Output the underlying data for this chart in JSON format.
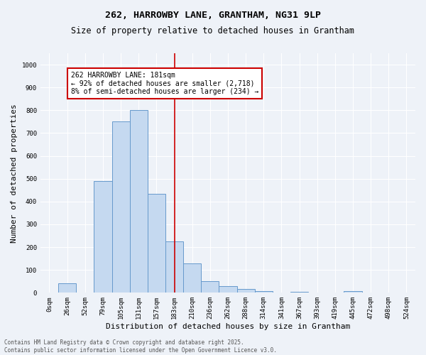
{
  "title": "262, HARROWBY LANE, GRANTHAM, NG31 9LP",
  "subtitle": "Size of property relative to detached houses in Grantham",
  "xlabel": "Distribution of detached houses by size in Grantham",
  "ylabel": "Number of detached properties",
  "bar_labels": [
    "0sqm",
    "26sqm",
    "52sqm",
    "79sqm",
    "105sqm",
    "131sqm",
    "157sqm",
    "183sqm",
    "210sqm",
    "236sqm",
    "262sqm",
    "288sqm",
    "314sqm",
    "341sqm",
    "367sqm",
    "393sqm",
    "419sqm",
    "445sqm",
    "472sqm",
    "498sqm",
    "524sqm"
  ],
  "bar_values": [
    0,
    40,
    0,
    490,
    750,
    800,
    435,
    225,
    130,
    50,
    28,
    18,
    8,
    0,
    5,
    0,
    0,
    6,
    0,
    0,
    0
  ],
  "bar_color": "#c5d9f0",
  "bar_edge_color": "#6699cc",
  "vline_x": 7,
  "vline_color": "#cc0000",
  "annotation_text": "262 HARROWBY LANE: 181sqm\n← 92% of detached houses are smaller (2,718)\n8% of semi-detached houses are larger (234) →",
  "annotation_box_color": "#cc0000",
  "ylim": [
    0,
    1050
  ],
  "yticks": [
    0,
    100,
    200,
    300,
    400,
    500,
    600,
    700,
    800,
    900,
    1000
  ],
  "bg_color": "#eef2f8",
  "grid_color": "#ffffff",
  "footer_text": "Contains HM Land Registry data © Crown copyright and database right 2025.\nContains public sector information licensed under the Open Government Licence v3.0.",
  "title_fontsize": 9.5,
  "subtitle_fontsize": 8.5,
  "tick_fontsize": 6.5,
  "label_fontsize": 8,
  "annotation_fontsize": 7,
  "footer_fontsize": 5.5
}
